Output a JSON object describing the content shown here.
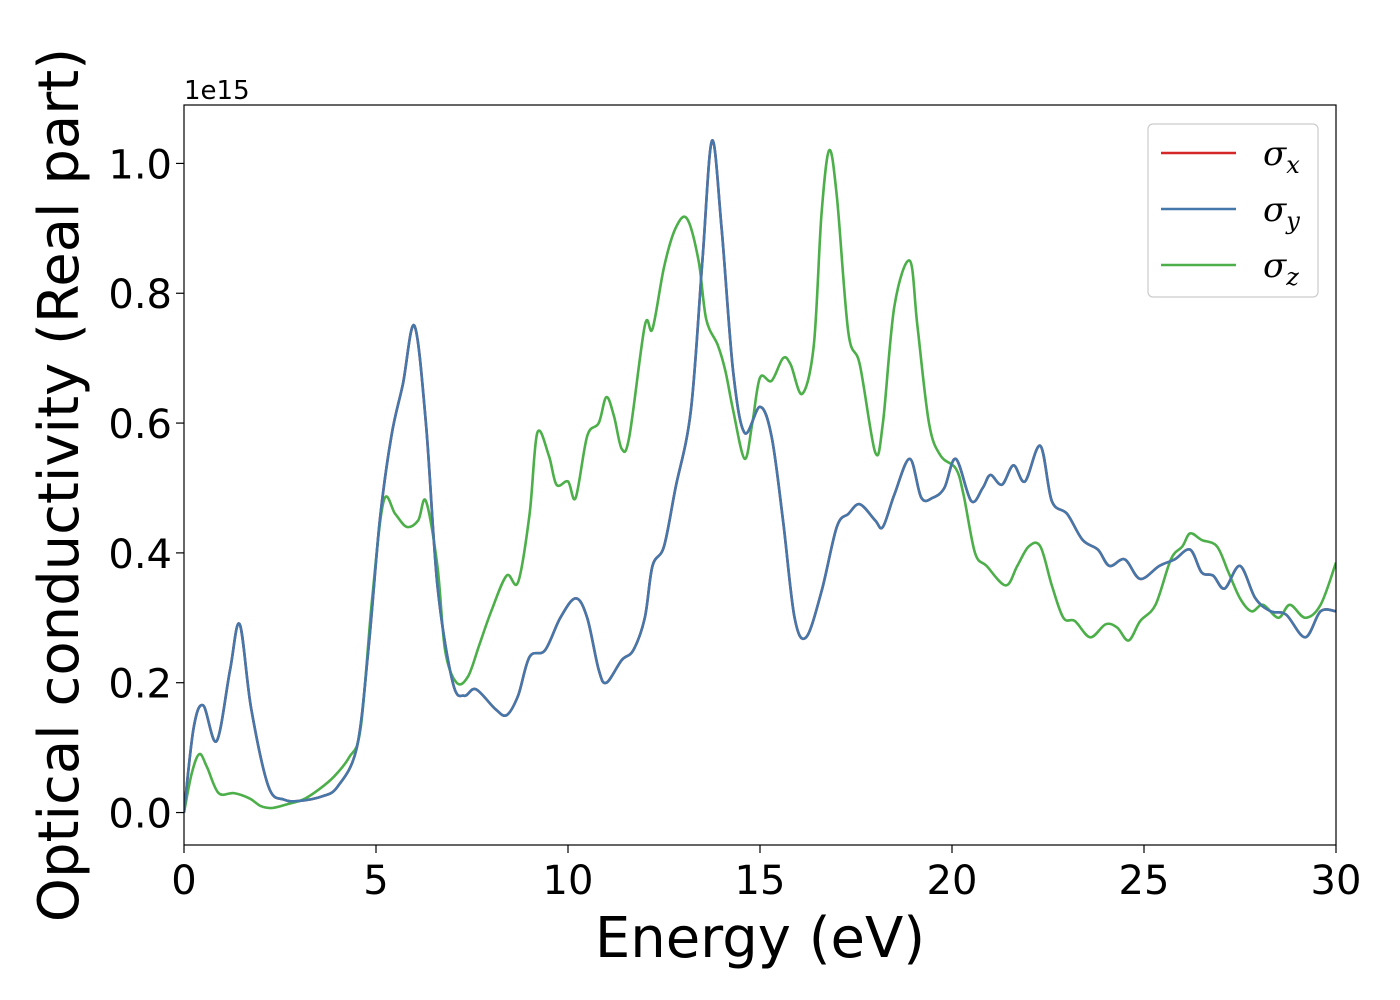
{
  "chart_data": {
    "type": "line",
    "xlabel": "Energy (eV)",
    "ylabel": "Optical conductivity (Real part)",
    "y_offset_label": "1e15",
    "xlim": [
      0,
      30
    ],
    "ylim": [
      -0.05,
      1.09
    ],
    "x_ticks": [
      0,
      5,
      10,
      15,
      20,
      25,
      30
    ],
    "x_tick_labels": [
      "0",
      "5",
      "10",
      "15",
      "20",
      "25",
      "30"
    ],
    "y_ticks": [
      0.0,
      0.2,
      0.4,
      0.6,
      0.8,
      1.0
    ],
    "y_tick_labels": [
      "0.0",
      "0.2",
      "0.4",
      "0.6",
      "0.8",
      "1.0"
    ],
    "grid": false,
    "legend_position": "top-right",
    "series": [
      {
        "name": "σ",
        "subscript": "x",
        "color": "#d62728",
        "points": [
          [
            0,
            0
          ],
          [
            0.25,
            0.13
          ],
          [
            0.5,
            0.165
          ],
          [
            0.85,
            0.11
          ],
          [
            1.2,
            0.22
          ],
          [
            1.45,
            0.29
          ],
          [
            1.75,
            0.16
          ],
          [
            2.2,
            0.04
          ],
          [
            2.6,
            0.02
          ],
          [
            3,
            0.018
          ],
          [
            3.6,
            0.025
          ],
          [
            4,
            0.04
          ],
          [
            4.5,
            0.1
          ],
          [
            4.8,
            0.25
          ],
          [
            5.1,
            0.45
          ],
          [
            5.4,
            0.58
          ],
          [
            5.7,
            0.66
          ],
          [
            6,
            0.75
          ],
          [
            6.3,
            0.6
          ],
          [
            6.6,
            0.35
          ],
          [
            7,
            0.2
          ],
          [
            7.3,
            0.18
          ],
          [
            7.6,
            0.19
          ],
          [
            8.1,
            0.16
          ],
          [
            8.4,
            0.15
          ],
          [
            8.7,
            0.18
          ],
          [
            9,
            0.24
          ],
          [
            9.4,
            0.25
          ],
          [
            9.8,
            0.3
          ],
          [
            10.2,
            0.33
          ],
          [
            10.5,
            0.3
          ],
          [
            10.8,
            0.22
          ],
          [
            11,
            0.2
          ],
          [
            11.4,
            0.235
          ],
          [
            11.7,
            0.25
          ],
          [
            12,
            0.3
          ],
          [
            12.2,
            0.38
          ],
          [
            12.5,
            0.41
          ],
          [
            12.8,
            0.5
          ],
          [
            13.2,
            0.62
          ],
          [
            13.5,
            0.85
          ],
          [
            13.75,
            1.035
          ],
          [
            14,
            0.9
          ],
          [
            14.3,
            0.68
          ],
          [
            14.6,
            0.585
          ],
          [
            15,
            0.625
          ],
          [
            15.3,
            0.58
          ],
          [
            15.6,
            0.45
          ],
          [
            15.9,
            0.3
          ],
          [
            16.2,
            0.27
          ],
          [
            16.6,
            0.34
          ],
          [
            17,
            0.44
          ],
          [
            17.3,
            0.46
          ],
          [
            17.6,
            0.475
          ],
          [
            18,
            0.45
          ],
          [
            18.2,
            0.44
          ],
          [
            18.5,
            0.49
          ],
          [
            18.9,
            0.545
          ],
          [
            19.2,
            0.485
          ],
          [
            19.5,
            0.485
          ],
          [
            19.8,
            0.5
          ],
          [
            20.1,
            0.545
          ],
          [
            20.5,
            0.48
          ],
          [
            20.8,
            0.5
          ],
          [
            21,
            0.52
          ],
          [
            21.3,
            0.505
          ],
          [
            21.6,
            0.535
          ],
          [
            21.9,
            0.51
          ],
          [
            22.3,
            0.565
          ],
          [
            22.6,
            0.48
          ],
          [
            23,
            0.46
          ],
          [
            23.4,
            0.42
          ],
          [
            23.8,
            0.405
          ],
          [
            24.1,
            0.38
          ],
          [
            24.5,
            0.39
          ],
          [
            24.9,
            0.36
          ],
          [
            25.4,
            0.38
          ],
          [
            25.8,
            0.39
          ],
          [
            26.2,
            0.405
          ],
          [
            26.5,
            0.37
          ],
          [
            26.8,
            0.365
          ],
          [
            27.1,
            0.345
          ],
          [
            27.5,
            0.38
          ],
          [
            27.9,
            0.33
          ],
          [
            28.3,
            0.31
          ],
          [
            28.7,
            0.305
          ],
          [
            29.2,
            0.27
          ],
          [
            29.6,
            0.31
          ],
          [
            30,
            0.31
          ]
        ]
      },
      {
        "name": "σ",
        "subscript": "y",
        "color": "#4477aa",
        "points": [
          [
            0,
            0
          ],
          [
            0.25,
            0.13
          ],
          [
            0.5,
            0.165
          ],
          [
            0.85,
            0.11
          ],
          [
            1.2,
            0.22
          ],
          [
            1.45,
            0.29
          ],
          [
            1.75,
            0.16
          ],
          [
            2.2,
            0.04
          ],
          [
            2.6,
            0.02
          ],
          [
            3,
            0.018
          ],
          [
            3.6,
            0.025
          ],
          [
            4,
            0.04
          ],
          [
            4.5,
            0.1
          ],
          [
            4.8,
            0.25
          ],
          [
            5.1,
            0.45
          ],
          [
            5.4,
            0.58
          ],
          [
            5.7,
            0.66
          ],
          [
            6,
            0.75
          ],
          [
            6.3,
            0.6
          ],
          [
            6.6,
            0.35
          ],
          [
            7,
            0.2
          ],
          [
            7.3,
            0.18
          ],
          [
            7.6,
            0.19
          ],
          [
            8.1,
            0.16
          ],
          [
            8.4,
            0.15
          ],
          [
            8.7,
            0.18
          ],
          [
            9,
            0.24
          ],
          [
            9.4,
            0.25
          ],
          [
            9.8,
            0.3
          ],
          [
            10.2,
            0.33
          ],
          [
            10.5,
            0.3
          ],
          [
            10.8,
            0.22
          ],
          [
            11,
            0.2
          ],
          [
            11.4,
            0.235
          ],
          [
            11.7,
            0.25
          ],
          [
            12,
            0.3
          ],
          [
            12.2,
            0.38
          ],
          [
            12.5,
            0.41
          ],
          [
            12.8,
            0.5
          ],
          [
            13.2,
            0.62
          ],
          [
            13.5,
            0.85
          ],
          [
            13.75,
            1.035
          ],
          [
            14,
            0.9
          ],
          [
            14.3,
            0.68
          ],
          [
            14.6,
            0.585
          ],
          [
            15,
            0.625
          ],
          [
            15.3,
            0.58
          ],
          [
            15.6,
            0.45
          ],
          [
            15.9,
            0.3
          ],
          [
            16.2,
            0.27
          ],
          [
            16.6,
            0.34
          ],
          [
            17,
            0.44
          ],
          [
            17.3,
            0.46
          ],
          [
            17.6,
            0.475
          ],
          [
            18,
            0.45
          ],
          [
            18.2,
            0.44
          ],
          [
            18.5,
            0.49
          ],
          [
            18.9,
            0.545
          ],
          [
            19.2,
            0.485
          ],
          [
            19.5,
            0.485
          ],
          [
            19.8,
            0.5
          ],
          [
            20.1,
            0.545
          ],
          [
            20.5,
            0.48
          ],
          [
            20.8,
            0.5
          ],
          [
            21,
            0.52
          ],
          [
            21.3,
            0.505
          ],
          [
            21.6,
            0.535
          ],
          [
            21.9,
            0.51
          ],
          [
            22.3,
            0.565
          ],
          [
            22.6,
            0.48
          ],
          [
            23,
            0.46
          ],
          [
            23.4,
            0.42
          ],
          [
            23.8,
            0.405
          ],
          [
            24.1,
            0.38
          ],
          [
            24.5,
            0.39
          ],
          [
            24.9,
            0.36
          ],
          [
            25.4,
            0.38
          ],
          [
            25.8,
            0.39
          ],
          [
            26.2,
            0.405
          ],
          [
            26.5,
            0.37
          ],
          [
            26.8,
            0.365
          ],
          [
            27.1,
            0.345
          ],
          [
            27.5,
            0.38
          ],
          [
            27.9,
            0.33
          ],
          [
            28.3,
            0.31
          ],
          [
            28.7,
            0.305
          ],
          [
            29.2,
            0.27
          ],
          [
            29.6,
            0.31
          ],
          [
            30,
            0.31
          ]
        ]
      },
      {
        "name": "σ",
        "subscript": "z",
        "color": "#4daf4a",
        "points": [
          [
            0,
            0
          ],
          [
            0.2,
            0.06
          ],
          [
            0.4,
            0.09
          ],
          [
            0.6,
            0.07
          ],
          [
            0.9,
            0.03
          ],
          [
            1.3,
            0.03
          ],
          [
            1.7,
            0.022
          ],
          [
            2,
            0.01
          ],
          [
            2.3,
            0.007
          ],
          [
            2.7,
            0.013
          ],
          [
            3.1,
            0.02
          ],
          [
            3.5,
            0.035
          ],
          [
            3.9,
            0.055
          ],
          [
            4.3,
            0.085
          ],
          [
            4.6,
            0.13
          ],
          [
            4.9,
            0.33
          ],
          [
            5.2,
            0.48
          ],
          [
            5.5,
            0.46
          ],
          [
            5.8,
            0.44
          ],
          [
            6.1,
            0.45
          ],
          [
            6.3,
            0.48
          ],
          [
            6.6,
            0.38
          ],
          [
            6.8,
            0.25
          ],
          [
            7.1,
            0.2
          ],
          [
            7.4,
            0.21
          ],
          [
            7.7,
            0.26
          ],
          [
            8,
            0.31
          ],
          [
            8.4,
            0.365
          ],
          [
            8.7,
            0.355
          ],
          [
            9,
            0.46
          ],
          [
            9.2,
            0.585
          ],
          [
            9.5,
            0.55
          ],
          [
            9.7,
            0.505
          ],
          [
            10,
            0.51
          ],
          [
            10.2,
            0.485
          ],
          [
            10.5,
            0.58
          ],
          [
            10.8,
            0.6
          ],
          [
            11,
            0.64
          ],
          [
            11.2,
            0.61
          ],
          [
            11.4,
            0.56
          ],
          [
            11.6,
            0.58
          ],
          [
            12,
            0.75
          ],
          [
            12.2,
            0.745
          ],
          [
            12.5,
            0.84
          ],
          [
            12.8,
            0.9
          ],
          [
            13.1,
            0.915
          ],
          [
            13.4,
            0.85
          ],
          [
            13.6,
            0.76
          ],
          [
            13.9,
            0.72
          ],
          [
            14.1,
            0.68
          ],
          [
            14.3,
            0.62
          ],
          [
            14.6,
            0.545
          ],
          [
            14.8,
            0.6
          ],
          [
            15,
            0.67
          ],
          [
            15.3,
            0.665
          ],
          [
            15.6,
            0.7
          ],
          [
            15.8,
            0.69
          ],
          [
            16.1,
            0.645
          ],
          [
            16.4,
            0.72
          ],
          [
            16.6,
            0.92
          ],
          [
            16.8,
            1.02
          ],
          [
            17,
            0.95
          ],
          [
            17.3,
            0.74
          ],
          [
            17.6,
            0.69
          ],
          [
            18,
            0.555
          ],
          [
            18.2,
            0.6
          ],
          [
            18.5,
            0.78
          ],
          [
            18.9,
            0.85
          ],
          [
            19.1,
            0.75
          ],
          [
            19.4,
            0.6
          ],
          [
            19.7,
            0.55
          ],
          [
            20.1,
            0.53
          ],
          [
            20.3,
            0.49
          ],
          [
            20.6,
            0.4
          ],
          [
            20.9,
            0.38
          ],
          [
            21.4,
            0.35
          ],
          [
            21.7,
            0.38
          ],
          [
            22,
            0.41
          ],
          [
            22.3,
            0.41
          ],
          [
            22.6,
            0.35
          ],
          [
            22.9,
            0.3
          ],
          [
            23.2,
            0.295
          ],
          [
            23.6,
            0.27
          ],
          [
            24,
            0.29
          ],
          [
            24.3,
            0.285
          ],
          [
            24.6,
            0.265
          ],
          [
            24.9,
            0.295
          ],
          [
            25.3,
            0.32
          ],
          [
            25.7,
            0.39
          ],
          [
            26,
            0.41
          ],
          [
            26.2,
            0.43
          ],
          [
            26.5,
            0.42
          ],
          [
            26.9,
            0.41
          ],
          [
            27.2,
            0.37
          ],
          [
            27.5,
            0.33
          ],
          [
            27.8,
            0.31
          ],
          [
            28.1,
            0.32
          ],
          [
            28.5,
            0.3
          ],
          [
            28.8,
            0.32
          ],
          [
            29.2,
            0.3
          ],
          [
            29.6,
            0.32
          ],
          [
            30,
            0.385
          ]
        ]
      }
    ]
  }
}
